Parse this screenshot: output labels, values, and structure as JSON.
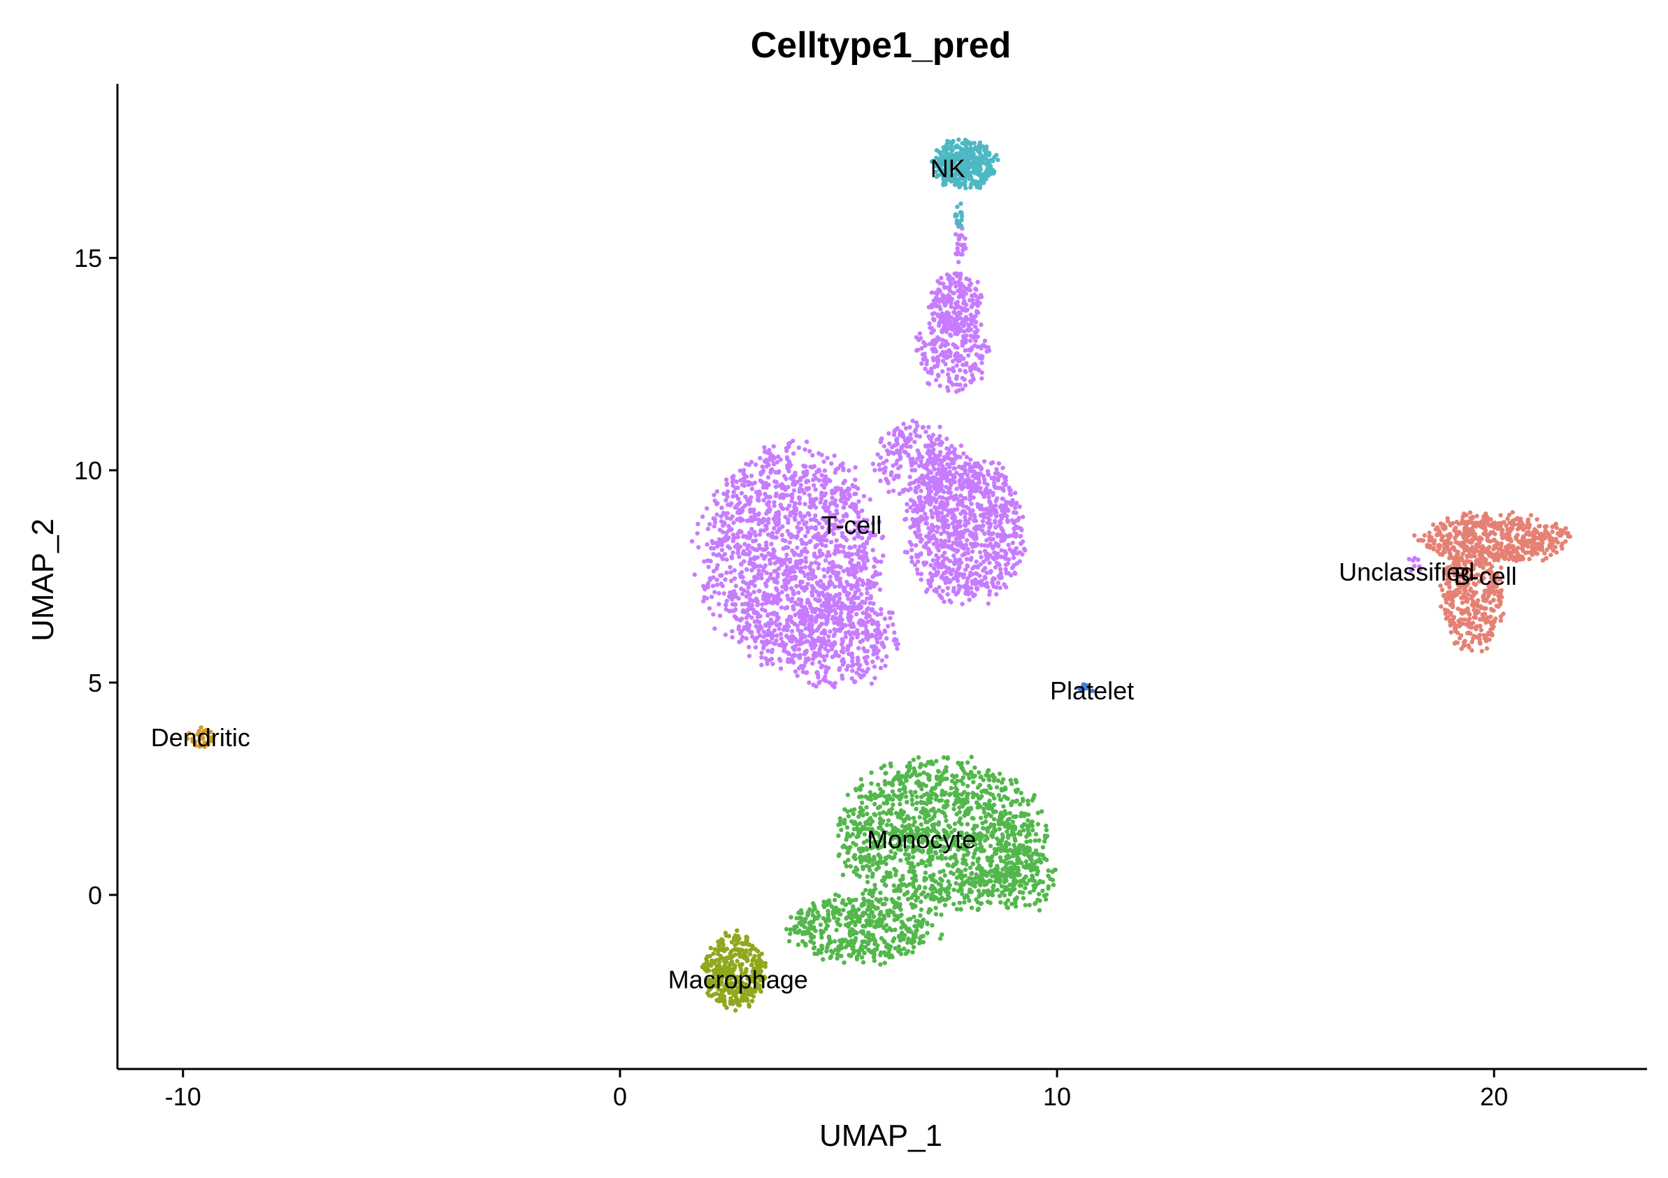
{
  "chart_data": {
    "type": "scatter",
    "title": "Celltype1_pred",
    "xlabel": "UMAP_1",
    "ylabel": "UMAP_2",
    "xlim": [
      -11.5,
      23.5
    ],
    "ylim": [
      -4.1,
      19.1
    ],
    "x_ticks": [
      {
        "value": -10,
        "label": "-10"
      },
      {
        "value": 0,
        "label": "0"
      },
      {
        "value": 10,
        "label": "10"
      },
      {
        "value": 20,
        "label": "20"
      }
    ],
    "y_ticks": [
      {
        "value": 0,
        "label": "0"
      },
      {
        "value": 5,
        "label": "5"
      },
      {
        "value": 10,
        "label": "10"
      },
      {
        "value": 15,
        "label": "15"
      }
    ],
    "grid": false,
    "legend": "none",
    "series": [
      {
        "name": "T-cell",
        "color": "#C77CFF",
        "label_pos": [
          5.3,
          8.7
        ],
        "regions": [
          {
            "cx": 3.9,
            "cy": 8.0,
            "rx": 2.3,
            "ry": 2.8,
            "n": 1500
          },
          {
            "cx": 5.0,
            "cy": 6.0,
            "rx": 1.5,
            "ry": 1.3,
            "n": 350
          },
          {
            "cx": 7.9,
            "cy": 8.6,
            "rx": 1.5,
            "ry": 1.9,
            "n": 900
          },
          {
            "cx": 6.8,
            "cy": 10.2,
            "rx": 1.1,
            "ry": 1.0,
            "n": 250
          },
          {
            "cx": 7.6,
            "cy": 12.8,
            "rx": 0.9,
            "ry": 1.1,
            "n": 220
          },
          {
            "cx": 7.7,
            "cy": 13.9,
            "rx": 0.7,
            "ry": 0.8,
            "n": 200
          },
          {
            "cx": 7.8,
            "cy": 15.3,
            "rx": 0.15,
            "ry": 0.5,
            "n": 25
          }
        ]
      },
      {
        "name": "Monocyte",
        "color": "#53B74C",
        "label_pos": [
          6.9,
          1.3
        ],
        "regions": [
          {
            "cx": 7.3,
            "cy": 1.4,
            "rx": 2.6,
            "ry": 2.0,
            "n": 1300
          },
          {
            "cx": 5.5,
            "cy": -0.8,
            "rx": 1.9,
            "ry": 0.9,
            "n": 450
          },
          {
            "cx": 9.2,
            "cy": 0.4,
            "rx": 0.9,
            "ry": 0.9,
            "n": 150
          }
        ]
      },
      {
        "name": "NK",
        "color": "#4DB8C3",
        "label_pos": [
          7.5,
          17.1
        ],
        "regions": [
          {
            "cx": 7.9,
            "cy": 17.2,
            "rx": 0.8,
            "ry": 0.65,
            "n": 380
          },
          {
            "cx": 7.75,
            "cy": 16.0,
            "rx": 0.1,
            "ry": 0.35,
            "n": 18
          }
        ]
      },
      {
        "name": "B-cell",
        "color": "#E58174",
        "label_pos": [
          19.8,
          7.5
        ],
        "regions": [
          {
            "cx": 20.0,
            "cy": 8.4,
            "rx": 1.9,
            "ry": 0.65,
            "n": 520
          },
          {
            "cx": 19.5,
            "cy": 7.0,
            "rx": 0.8,
            "ry": 1.4,
            "n": 380
          }
        ]
      },
      {
        "name": "Macrophage",
        "color": "#8FA81E",
        "label_pos": [
          2.7,
          -2.0
        ],
        "regions": [
          {
            "cx": 2.6,
            "cy": -1.8,
            "rx": 0.8,
            "ry": 1.0,
            "n": 380
          }
        ]
      },
      {
        "name": "Unclassified",
        "color": "#C77CFF",
        "label_pos": [
          18.0,
          7.6
        ],
        "regions": [
          {
            "cx": 18.2,
            "cy": 7.8,
            "rx": 0.25,
            "ry": 0.3,
            "n": 8
          }
        ]
      },
      {
        "name": "Platelet",
        "color": "#3B7FD9",
        "label_pos": [
          10.8,
          4.8
        ],
        "regions": [
          {
            "cx": 10.7,
            "cy": 4.9,
            "rx": 0.3,
            "ry": 0.12,
            "n": 10
          }
        ]
      },
      {
        "name": "Dendritic",
        "color": "#D39A2C",
        "label_pos": [
          -9.6,
          3.7
        ],
        "regions": [
          {
            "cx": -9.6,
            "cy": 3.7,
            "rx": 0.35,
            "ry": 0.3,
            "n": 30
          }
        ]
      }
    ]
  }
}
